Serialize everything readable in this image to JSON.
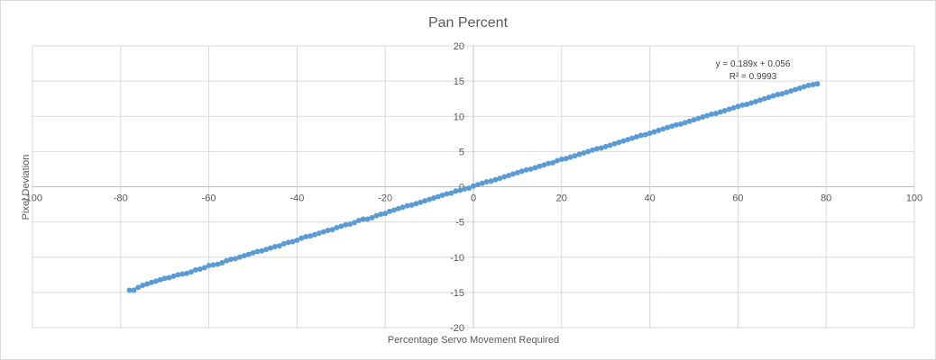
{
  "chart_data": {
    "type": "scatter",
    "title": "Pan Percent",
    "xlabel": "Percentage Servo Movement  Required",
    "ylabel": "Pixel Deviation",
    "xlim": [
      -100,
      100
    ],
    "ylim": [
      -20,
      20
    ],
    "x_ticks": [
      -100,
      -80,
      -60,
      -40,
      -20,
      0,
      20,
      40,
      60,
      80,
      100
    ],
    "y_ticks": [
      -20,
      -15,
      -10,
      -5,
      0,
      5,
      10,
      15,
      20
    ],
    "x_tick_labels": [
      "-100",
      "-80",
      "-60",
      "-40",
      "-20",
      "0",
      "20",
      "40",
      "60",
      "80",
      "100"
    ],
    "y_tick_labels": [
      "-20",
      "-15",
      "-10",
      "-5",
      "0",
      "5",
      "10",
      "15",
      "20"
    ],
    "grid": true,
    "legend": "none",
    "color": "#5b9bd5",
    "trendline": {
      "slope": 0.189,
      "intercept": 0.056,
      "equation_label": "y = 0.189x + 0.056",
      "r2_label": "R² = 0.9993"
    },
    "series": [
      {
        "x": [
          -78,
          -77,
          -76,
          -75,
          -74,
          -73,
          -72,
          -71,
          -70,
          -69,
          -68,
          -67,
          -66,
          -65,
          -64,
          -63,
          -62,
          -61,
          -60,
          -59,
          -58,
          -57,
          -56,
          -55,
          -54,
          -53,
          -52,
          -51,
          -50,
          -49,
          -48,
          -47,
          -46,
          -45,
          -44,
          -43,
          -42,
          -41,
          -40,
          -39,
          -38,
          -37,
          -36,
          -35,
          -34,
          -33,
          -32,
          -31,
          -30,
          -29,
          -28,
          -27,
          -26,
          -25,
          -24,
          -23,
          -22,
          -21,
          -20,
          -19,
          -18,
          -17,
          -16,
          -15,
          -14,
          -13,
          -12,
          -11,
          -10,
          -9,
          -8,
          -7,
          -6,
          -5,
          -4,
          -3,
          -2,
          -1,
          0,
          1,
          2,
          3,
          4,
          5,
          6,
          7,
          8,
          9,
          10,
          11,
          12,
          13,
          14,
          15,
          16,
          17,
          18,
          19,
          20,
          21,
          22,
          23,
          24,
          25,
          26,
          27,
          28,
          29,
          30,
          31,
          32,
          33,
          34,
          35,
          36,
          37,
          38,
          39,
          40,
          41,
          42,
          43,
          44,
          45,
          46,
          47,
          48,
          49,
          50,
          51,
          52,
          53,
          54,
          55,
          56,
          57,
          58,
          59,
          60,
          61,
          62,
          63,
          64,
          65,
          66,
          67,
          68,
          69,
          70,
          71,
          72,
          73,
          74,
          75,
          76,
          77,
          78
        ],
        "y": [
          -14.7,
          -14.7,
          -14.3,
          -14.0,
          -13.8,
          -13.6,
          -13.4,
          -13.2,
          -13.0,
          -12.9,
          -12.7,
          -12.5,
          -12.4,
          -12.3,
          -12.1,
          -11.8,
          -11.7,
          -11.5,
          -11.2,
          -11.1,
          -11.0,
          -10.8,
          -10.5,
          -10.3,
          -10.2,
          -10.0,
          -9.8,
          -9.6,
          -9.4,
          -9.2,
          -9.1,
          -8.9,
          -8.7,
          -8.5,
          -8.4,
          -8.1,
          -7.9,
          -7.8,
          -7.6,
          -7.3,
          -7.1,
          -7.0,
          -6.8,
          -6.6,
          -6.4,
          -6.2,
          -6.1,
          -5.8,
          -5.6,
          -5.4,
          -5.3,
          -5.1,
          -4.8,
          -4.6,
          -4.6,
          -4.4,
          -4.1,
          -3.9,
          -3.8,
          -3.5,
          -3.3,
          -3.1,
          -2.9,
          -2.7,
          -2.6,
          -2.4,
          -2.2,
          -2.0,
          -1.8,
          -1.6,
          -1.4,
          -1.2,
          -1.0,
          -0.9,
          -0.6,
          -0.5,
          -0.3,
          -0.2,
          0.1,
          0.3,
          0.5,
          0.7,
          0.8,
          1.0,
          1.2,
          1.4,
          1.6,
          1.8,
          2.0,
          2.2,
          2.4,
          2.5,
          2.7,
          2.9,
          3.1,
          3.3,
          3.4,
          3.7,
          3.9,
          4.0,
          4.2,
          4.4,
          4.6,
          4.8,
          5.0,
          5.2,
          5.4,
          5.5,
          5.7,
          5.9,
          6.1,
          6.3,
          6.5,
          6.7,
          6.9,
          7.1,
          7.3,
          7.4,
          7.6,
          7.8,
          8.0,
          8.2,
          8.4,
          8.6,
          8.8,
          8.9,
          9.1,
          9.3,
          9.5,
          9.7,
          9.9,
          10.1,
          10.3,
          10.4,
          10.6,
          10.8,
          11.0,
          11.2,
          11.4,
          11.6,
          11.7,
          11.9,
          12.1,
          12.3,
          12.5,
          12.7,
          12.9,
          13.1,
          13.2,
          13.4,
          13.6,
          13.8,
          14.0,
          14.2,
          14.4,
          14.5,
          14.6
        ]
      }
    ]
  }
}
